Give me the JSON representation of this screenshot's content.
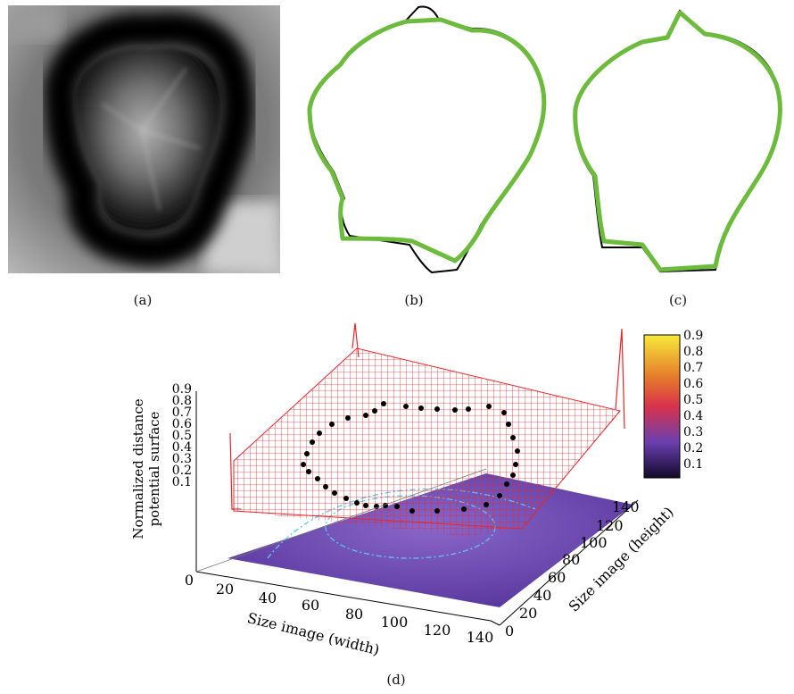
{
  "panels": {
    "a": {
      "caption": "(a)"
    },
    "b": {
      "caption": "(b)"
    },
    "c": {
      "caption": "(c)"
    },
    "d": {
      "caption": "(d)"
    }
  },
  "surface_plot": {
    "z_label_line1": "Normalized distance",
    "z_label_line2": "potential surface",
    "x_label": "Size image (width)",
    "y_label": "Size image (height)",
    "z_ticks": [
      "0.9",
      "0.8",
      "0.7",
      "0.6",
      "0.5",
      "0.4",
      "0.3",
      "0.2",
      "0.1"
    ],
    "x_ticks": [
      "0",
      "20",
      "40",
      "60",
      "80",
      "100",
      "120",
      "140"
    ],
    "y_ticks": [
      "0",
      "20",
      "40",
      "60",
      "80",
      "100",
      "120",
      "140"
    ],
    "colorbar_ticks": [
      "0.9",
      "0.8",
      "0.7",
      "0.6",
      "0.5",
      "0.4",
      "0.3",
      "0.2",
      "0.1"
    ],
    "colors": {
      "mesh": "#e8262b",
      "contour": "#5cc8f0",
      "colorbar_top": "#f7e93a",
      "colorbar_mid": "#d8324c",
      "colorbar_low": "#6a3fb0",
      "colorbar_bottom": "#120a2a",
      "contour_green": "#6dbb3c"
    }
  }
}
